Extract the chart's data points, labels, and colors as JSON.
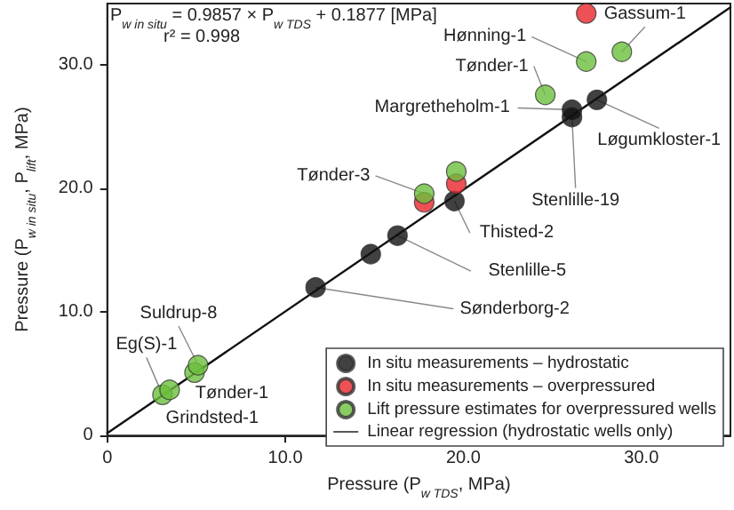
{
  "chart_data": {
    "type": "scatter",
    "xlabel": "Pressure (P$_{w TDS}$, MPa)",
    "ylabel": "Pressure (P$_{w in situ}$, P$_{lift}$, MPa)",
    "xlim": [
      0,
      35
    ],
    "ylim": [
      0,
      35
    ],
    "xticks": [
      0,
      {
        "value": 10,
        "label": "10.0"
      },
      {
        "value": 20,
        "label": "20.0"
      },
      {
        "value": 30,
        "label": "30.0"
      }
    ],
    "yticks": [
      0,
      {
        "value": 10,
        "label": "10.0"
      },
      {
        "value": 20,
        "label": "20.0"
      },
      {
        "value": 30,
        "label": "30.0"
      }
    ],
    "grid": false,
    "legend": "bottom right",
    "marker": "circle",
    "series": [
      {
        "name": "In situ measurements – hydrostatic",
        "color": "#111111",
        "x": [
          11.7,
          14.8,
          16.3,
          19.5,
          26.1,
          26.1,
          27.5
        ],
        "values": [
          12.0,
          14.7,
          16.2,
          19.0,
          26.4,
          25.8,
          27.2
        ]
      },
      {
        "name": "In situ measurements – overpressured",
        "color": "#e8262a",
        "x": [
          26.9,
          19.6,
          17.8
        ],
        "values": [
          34.2,
          20.4,
          18.9
        ]
      },
      {
        "name": "Lift pressure estimates for overpressured wells",
        "color": "#6cbf3c",
        "x": [
          26.9,
          28.9,
          24.6,
          19.6,
          17.8,
          3.1,
          3.5,
          4.9,
          5.1
        ],
        "values": [
          30.3,
          31.1,
          27.6,
          21.4,
          19.6,
          3.3,
          3.7,
          5.1,
          5.7
        ]
      },
      {
        "name": "Linear regression (hydrostatic wells only)",
        "type": "line",
        "marker": "none",
        "line_style": "solid",
        "color": "#111111",
        "x": [
          0,
          35
        ],
        "values": [
          0.2,
          34.7
        ]
      }
    ],
    "annotations": [
      "P$_{w in situ}$ = 0.9857 × P$_{w TDS}$ + 0.1877 [MPa]",
      "r² = 0.998",
      {
        "text": "Hønning-1",
        "x": 26.9,
        "y": 30.3
      },
      {
        "text": "Gassum-1",
        "x": 28.9,
        "y": 31.1
      },
      {
        "text": "Tønder-1",
        "x": 24.6,
        "y": 27.6
      },
      {
        "text": "Margretheholm-1",
        "x": 26.1,
        "y": 26.4
      },
      {
        "text": "Løgumkloster-1",
        "x": 27.5,
        "y": 27.2
      },
      {
        "text": "Stenlille-19",
        "x": 26.1,
        "y": 25.8
      },
      {
        "text": "Tønder-3",
        "x": 17.8,
        "y": 19.6
      },
      {
        "text": "Thisted-2",
        "x": 19.5,
        "y": 19.0
      },
      {
        "text": "Stenlille-5",
        "x": 16.3,
        "y": 16.2
      },
      {
        "text": "Sønderborg-2",
        "x": 11.7,
        "y": 12.0
      },
      {
        "text": "Suldrup-8",
        "x": 5.1,
        "y": 5.7
      },
      {
        "text": "Eg(S)-1",
        "x": 3.1,
        "y": 3.3
      },
      {
        "text": "Tønder-1",
        "x": 4.9,
        "y": 5.1
      },
      {
        "text": "Grindsted-1",
        "x": 3.5,
        "y": 3.7
      }
    ]
  }
}
